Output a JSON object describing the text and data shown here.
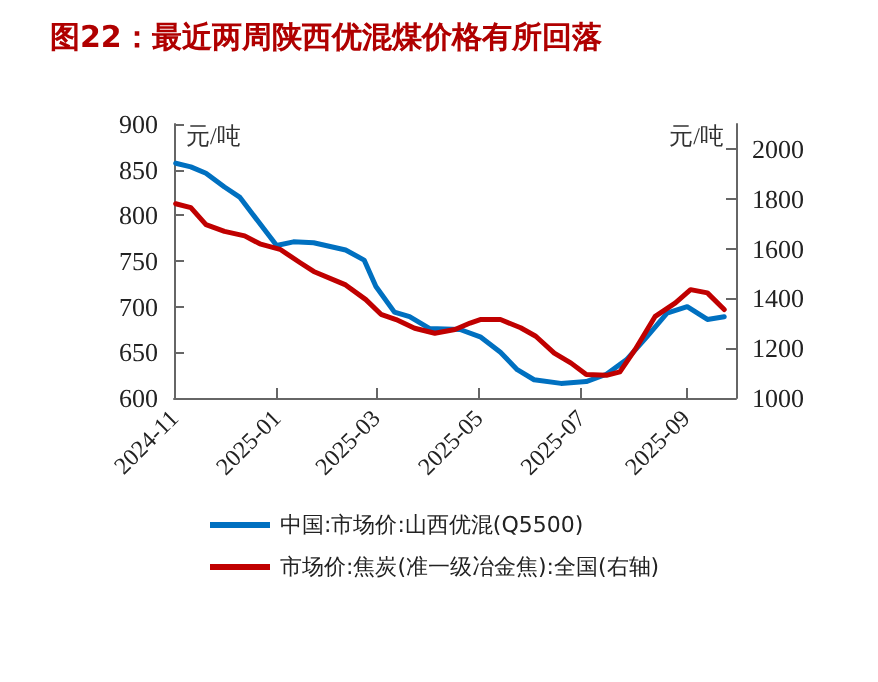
{
  "chart_data": {
    "type": "line",
    "title": "图22：最近两周陕西优混煤价格有所回落",
    "ylabel": "元/吨",
    "y2label": "元/吨",
    "xlim": [
      "2024-11-01",
      "2025-10-01"
    ],
    "xticks": [
      {
        "value": "2024-11-01",
        "label": "2024-11"
      },
      {
        "value": "2025-01-01",
        "label": "2025-01"
      },
      {
        "value": "2025-03-01",
        "label": "2025-03"
      },
      {
        "value": "2025-05-01",
        "label": "2025-05"
      },
      {
        "value": "2025-07-01",
        "label": "2025-07"
      },
      {
        "value": "2025-09-01",
        "label": "2025-09"
      }
    ],
    "ylim": [
      600,
      900
    ],
    "yticks": [
      600,
      650,
      700,
      750,
      800,
      850,
      900
    ],
    "y2lim": [
      1000,
      2100
    ],
    "y2ticks": [
      1000,
      1200,
      1400,
      1600,
      1800,
      2000
    ],
    "grid": false,
    "legend": "bottom",
    "marker": "none",
    "line_style": "solid",
    "series": [
      {
        "name": "中国:市场价:山西优混(Q5500)",
        "color": "#0070c0",
        "x": [
          "2024-11-02",
          "2024-11-11",
          "2024-11-20",
          "2024-12-01",
          "2024-12-10",
          "2024-12-22",
          "2025-01-01",
          "2025-01-11",
          "2025-01-23",
          "2025-02-11",
          "2025-02-22",
          "2025-03-01",
          "2025-03-12",
          "2025-03-21",
          "2025-04-02",
          "2025-04-20",
          "2025-05-02",
          "2025-05-14",
          "2025-05-24",
          "2025-06-03",
          "2025-06-19",
          "2025-07-04",
          "2025-07-16",
          "2025-07-28",
          "2025-08-09",
          "2025-08-21",
          "2025-09-02",
          "2025-09-14",
          "2025-09-24"
        ],
        "values": [
          857,
          853,
          846,
          831,
          820,
          791,
          767,
          771,
          770,
          762,
          751,
          722,
          694,
          689,
          676,
          675,
          667,
          650,
          631,
          620,
          616,
          618,
          626,
          642,
          667,
          693,
          700,
          686,
          689
        ]
      },
      {
        "name": "市场价:焦炭(准一级冶金焦):全国(右轴)",
        "color": "#c00000",
        "axis": "y2",
        "x": [
          "2024-11-02",
          "2024-11-11",
          "2024-11-20",
          "2024-12-01",
          "2024-12-13",
          "2024-12-22",
          "2025-01-03",
          "2025-01-15",
          "2025-01-23",
          "2025-02-11",
          "2025-02-23",
          "2025-03-04",
          "2025-03-13",
          "2025-03-24",
          "2025-04-05",
          "2025-04-17",
          "2025-04-26",
          "2025-05-02",
          "2025-05-14",
          "2025-05-26",
          "2025-06-04",
          "2025-06-15",
          "2025-06-25",
          "2025-07-04",
          "2025-07-16",
          "2025-07-24",
          "2025-08-02",
          "2025-08-14",
          "2025-08-26",
          "2025-09-04",
          "2025-09-14",
          "2025-09-24"
        ],
        "values": [
          1780,
          1764,
          1696,
          1669,
          1651,
          1619,
          1597,
          1543,
          1508,
          1454,
          1395,
          1336,
          1315,
          1280,
          1260,
          1275,
          1301,
          1315,
          1315,
          1282,
          1248,
          1180,
          1140,
          1094,
          1091,
          1105,
          1194,
          1328,
          1382,
          1435,
          1422,
          1355
        ]
      }
    ]
  }
}
